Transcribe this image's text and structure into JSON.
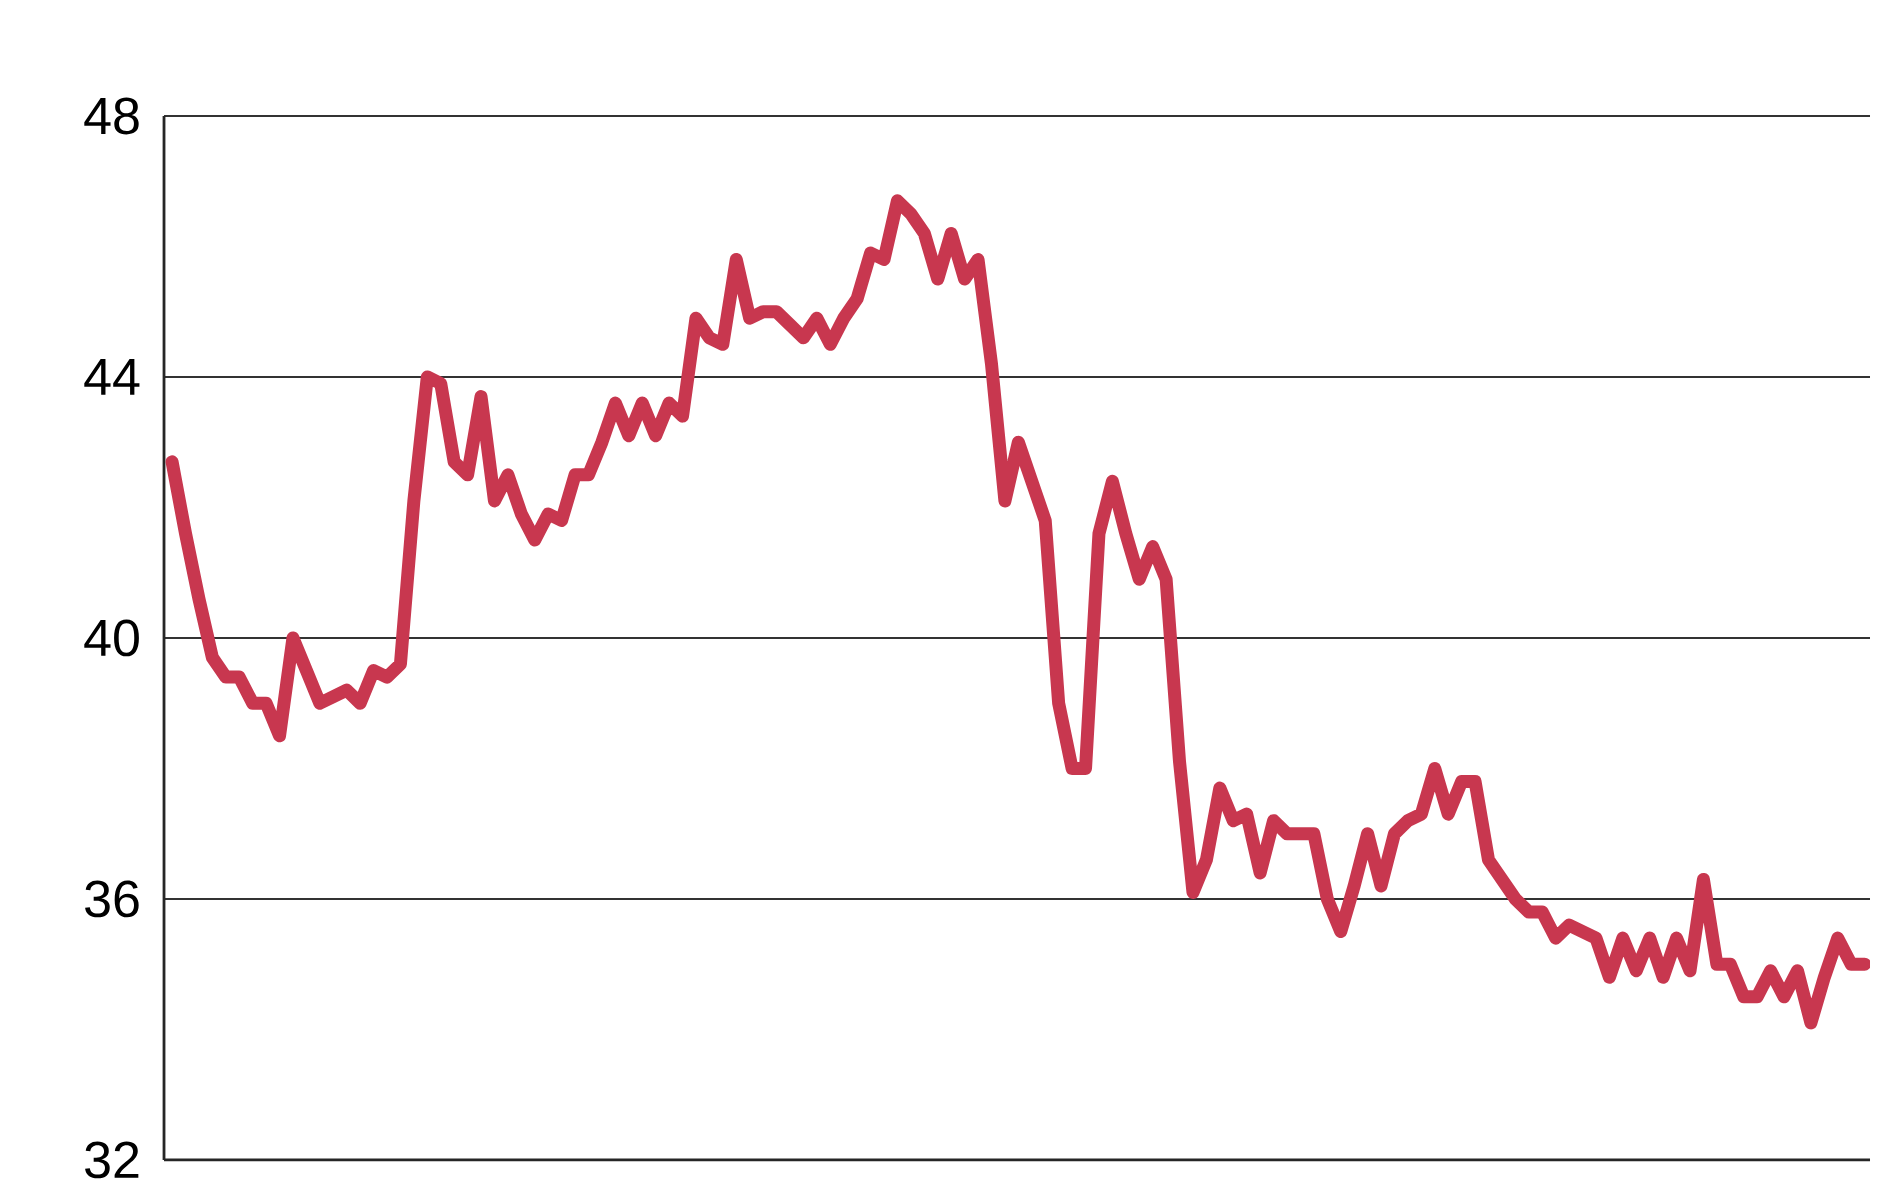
{
  "chart_data": {
    "type": "line",
    "color": "#c8374f",
    "categories": [
      null,
      null,
      null,
      null,
      null,
      null,
      null,
      null,
      null,
      null,
      null,
      null,
      null,
      null,
      null,
      null,
      null,
      null,
      null,
      null,
      null,
      null,
      null,
      null,
      null,
      null,
      null,
      null,
      null,
      null,
      null,
      null,
      null,
      null,
      null,
      null,
      null,
      null,
      null,
      null,
      null,
      null,
      null,
      null,
      null,
      null,
      null,
      null,
      null,
      null,
      null,
      null,
      null,
      null,
      null,
      null,
      null,
      null,
      null,
      null,
      null,
      null,
      null,
      null,
      null,
      null,
      null,
      null,
      null,
      null,
      null,
      null,
      null,
      null,
      null,
      null,
      null,
      null,
      null,
      null,
      null,
      null,
      null,
      null,
      null,
      null,
      null,
      null,
      null,
      null,
      null,
      null,
      null,
      null,
      null,
      null,
      null,
      null,
      null,
      null,
      null,
      null,
      null,
      null,
      null,
      null,
      null,
      null,
      null,
      null,
      null,
      null,
      null,
      null,
      null,
      null,
      null,
      null,
      null,
      null,
      null,
      null,
      null,
      null,
      null,
      null,
      null
    ],
    "values": [
      42.7,
      41.6,
      40.6,
      39.7,
      39.4,
      39.4,
      39.0,
      39.0,
      38.5,
      40.0,
      39.5,
      39.0,
      39.1,
      39.2,
      39.0,
      39.5,
      39.4,
      39.6,
      42.1,
      44.0,
      43.9,
      42.7,
      42.5,
      43.7,
      42.1,
      42.5,
      41.9,
      41.5,
      41.9,
      41.8,
      42.5,
      42.5,
      43.0,
      43.6,
      43.1,
      43.6,
      43.1,
      43.6,
      43.4,
      44.9,
      44.6,
      44.5,
      45.8,
      44.9,
      45.0,
      45.0,
      44.8,
      44.6,
      44.9,
      44.5,
      44.9,
      45.2,
      45.9,
      45.8,
      46.7,
      46.5,
      46.2,
      45.5,
      46.2,
      45.5,
      45.8,
      44.2,
      42.1,
      43.0,
      42.4,
      41.8,
      39.0,
      38.0,
      38.0,
      41.6,
      42.4,
      41.6,
      40.9,
      41.4,
      40.9,
      38.1,
      36.1,
      36.6,
      37.7,
      37.2,
      37.3,
      36.4,
      37.2,
      37.0,
      37.0,
      37.0,
      36.0,
      35.5,
      36.2,
      37.0,
      36.2,
      37.0,
      37.2,
      37.3,
      38.0,
      37.3,
      37.8,
      37.8,
      36.6,
      36.3,
      36.0,
      35.8,
      35.8,
      35.4,
      35.6,
      35.5,
      35.4,
      34.8,
      35.4,
      34.9,
      35.4,
      34.8,
      35.4,
      34.9,
      36.3,
      35.0,
      35.0,
      34.5,
      34.5,
      34.9,
      34.5,
      34.9,
      34.1,
      34.8,
      35.4,
      35.0,
      35.0
    ],
    "ylim": [
      32,
      48
    ],
    "yticks": [
      32,
      36,
      40,
      44,
      48
    ],
    "grid": "y",
    "tick_labels": "y",
    "marker": "none",
    "line_style": "solid"
  }
}
